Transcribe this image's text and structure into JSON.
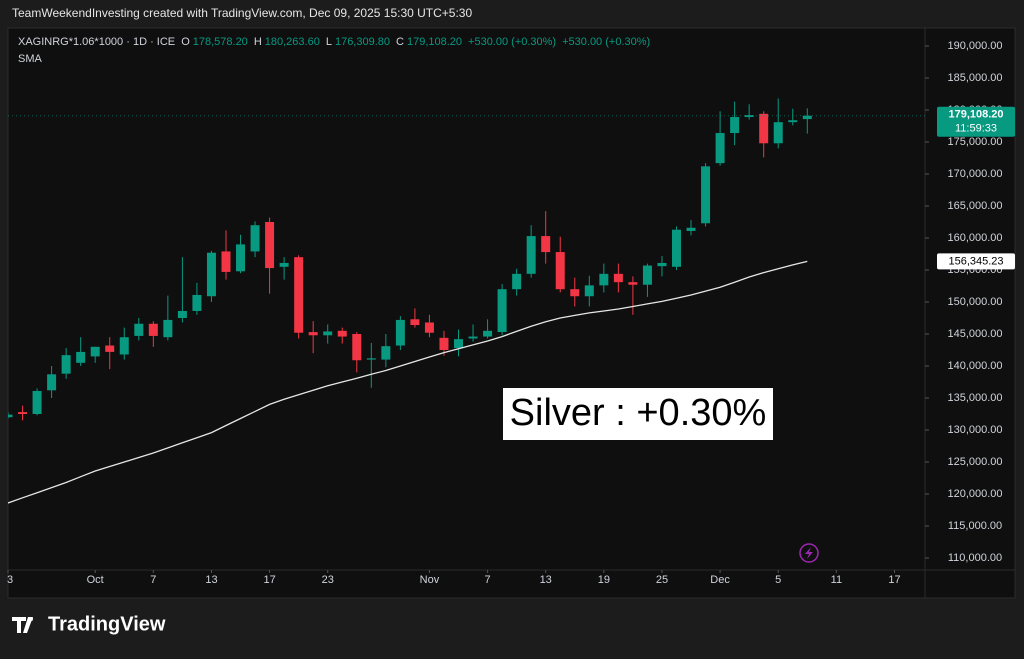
{
  "chart_data": {
    "type": "candlestick",
    "title": "TeamWeekendInvesting created with TradingView.com, Dec 09, 2025 15:30 UTC+5:30",
    "legend": {
      "symbol": "XAGINRG*1.06*1000 · 1D · ICE",
      "fields": [
        {
          "key": "O",
          "label": "178,578.20"
        },
        {
          "key": "H",
          "label": "180,263.60"
        },
        {
          "key": "L",
          "label": "176,309.80"
        },
        {
          "key": "C",
          "label": "179,108.20"
        }
      ],
      "change": [
        "+530.00 (+0.30%)",
        "+530.00 (+0.30%)"
      ]
    },
    "annotation": "Silver : +0.30%",
    "brand": "TradingView",
    "last_price_label": "179,108.20",
    "countdown": "11:59:33",
    "sma_label": "156,345.23",
    "up_color": "#089981",
    "down_color": "#f23645",
    "x": [
      -6,
      -5,
      -4,
      -3,
      -2,
      -1,
      0,
      1,
      2,
      3,
      4,
      5,
      6,
      7,
      8,
      9,
      10,
      11,
      12,
      13,
      14,
      15,
      16,
      17,
      18,
      19,
      20,
      21,
      22,
      23,
      24,
      25,
      26,
      27,
      28,
      29,
      30,
      31,
      32,
      33,
      34,
      35,
      36,
      37,
      38,
      39,
      40,
      41,
      42,
      43,
      44,
      45,
      46,
      47,
      48,
      49
    ],
    "series": [
      {
        "name": "XAGINRG*1.06*1000 · 1D · ICE",
        "open": [
          132000,
          132800,
          132500,
          136200,
          138800,
          140500,
          141500,
          143200,
          141800,
          144700,
          146600,
          144500,
          147500,
          148600,
          150900,
          157900,
          154800,
          157900,
          162500,
          155500,
          157000,
          145300,
          144800,
          145500,
          145000,
          141000,
          141000,
          143200,
          147300,
          146800,
          144400,
          142800,
          144300,
          144600,
          145300,
          152000,
          154400,
          160300,
          157800,
          152000,
          150900,
          152600,
          154400,
          153100,
          152700,
          155600,
          155500,
          161100,
          162300,
          171700,
          176400,
          178900,
          179400,
          174800,
          178100,
          178578.2
        ],
        "high": [
          132800,
          133800,
          136500,
          140000,
          142800,
          144500,
          143000,
          144500,
          146000,
          147500,
          147000,
          151000,
          157000,
          153000,
          158000,
          161200,
          160500,
          162600,
          163200,
          157000,
          157300,
          147000,
          146500,
          146000,
          145300,
          143600,
          145000,
          147800,
          149000,
          148000,
          145500,
          145700,
          146500,
          147300,
          152800,
          155200,
          162000,
          164200,
          160200,
          153800,
          154100,
          156000,
          156000,
          154000,
          156000,
          157200,
          161800,
          162800,
          171700,
          179800,
          181300,
          180900,
          179800,
          181800,
          180200,
          180263.6
        ],
        "low": [
          131800,
          131500,
          132300,
          135000,
          138000,
          140000,
          140500,
          139500,
          141000,
          144000,
          143000,
          144000,
          146800,
          148000,
          150000,
          153500,
          154500,
          157000,
          151300,
          153500,
          144300,
          142000,
          143500,
          143500,
          139000,
          136600,
          139800,
          142500,
          146000,
          144500,
          141600,
          141500,
          143800,
          144300,
          144800,
          151000,
          153800,
          156000,
          151500,
          149300,
          149300,
          151500,
          151500,
          148000,
          150800,
          154000,
          155000,
          160400,
          161800,
          171300,
          174500,
          178500,
          172600,
          174000,
          177600,
          176309.8
        ],
        "close": [
          132400,
          132500,
          136100,
          138700,
          141700,
          142200,
          143000,
          142200,
          144500,
          146600,
          144700,
          147200,
          148600,
          151100,
          157700,
          154700,
          159000,
          162000,
          155300,
          156100,
          145200,
          144800,
          145400,
          144600,
          140900,
          141200,
          143100,
          147200,
          146400,
          145200,
          142500,
          144200,
          144600,
          145500,
          152000,
          154400,
          160300,
          157800,
          152000,
          150900,
          152600,
          154400,
          153100,
          152700,
          155700,
          156100,
          161300,
          161600,
          171200,
          176400,
          178900,
          179200,
          174800,
          178100,
          178400,
          179108.2
        ]
      },
      {
        "name": "SMA",
        "color": "#e6e6e6",
        "values": [
          118600,
          119400,
          120200,
          121000,
          121800,
          122700,
          123600,
          124300,
          125000,
          125700,
          126400,
          127200,
          128000,
          128800,
          129600,
          130700,
          131800,
          132900,
          134000,
          134800,
          135500,
          136200,
          136900,
          137500,
          138100,
          138700,
          139300,
          140000,
          140700,
          141400,
          142100,
          142700,
          143300,
          143900,
          144600,
          145400,
          146200,
          146900,
          147500,
          147900,
          148300,
          148600,
          148900,
          149300,
          149700,
          150100,
          150600,
          151100,
          151700,
          152300,
          153100,
          153900,
          154600,
          155200,
          155800,
          156345.23
        ]
      }
    ],
    "xlim": [
      -6,
      57.1
    ],
    "xticks": [
      {
        "value": -6,
        "label": "3"
      },
      {
        "value": 0,
        "label": "Oct"
      },
      {
        "value": 4,
        "label": "7"
      },
      {
        "value": 8,
        "label": "13"
      },
      {
        "value": 12,
        "label": "17"
      },
      {
        "value": 16,
        "label": "23"
      },
      {
        "value": 23,
        "label": "Nov"
      },
      {
        "value": 27,
        "label": "7"
      },
      {
        "value": 31,
        "label": "13"
      },
      {
        "value": 35,
        "label": "19"
      },
      {
        "value": 39,
        "label": "25"
      },
      {
        "value": 43,
        "label": "Dec"
      },
      {
        "value": 47,
        "label": "5"
      },
      {
        "value": 51,
        "label": "11"
      },
      {
        "value": 55,
        "label": "17"
      }
    ],
    "ylim": [
      108125,
      192812.5
    ],
    "yticks": [
      {
        "value": 110000,
        "label": "110,000.00"
      },
      {
        "value": 115000,
        "label": "115,000.00"
      },
      {
        "value": 120000,
        "label": "120,000.00"
      },
      {
        "value": 125000,
        "label": "125,000.00"
      },
      {
        "value": 130000,
        "label": "130,000.00"
      },
      {
        "value": 135000,
        "label": "135,000.00"
      },
      {
        "value": 140000,
        "label": "140,000.00"
      },
      {
        "value": 145000,
        "label": "145,000.00"
      },
      {
        "value": 150000,
        "label": "150,000.00"
      },
      {
        "value": 155000,
        "label": "155,000.00"
      },
      {
        "value": 160000,
        "label": "160,000.00"
      },
      {
        "value": 165000,
        "label": "165,000.00"
      },
      {
        "value": 170000,
        "label": "170,000.00"
      },
      {
        "value": 175000,
        "label": "175,000.00"
      },
      {
        "value": 180000,
        "label": "180,000.00"
      },
      {
        "value": 185000,
        "label": "185,000.00"
      },
      {
        "value": 190000,
        "label": "190,000.00"
      }
    ]
  }
}
